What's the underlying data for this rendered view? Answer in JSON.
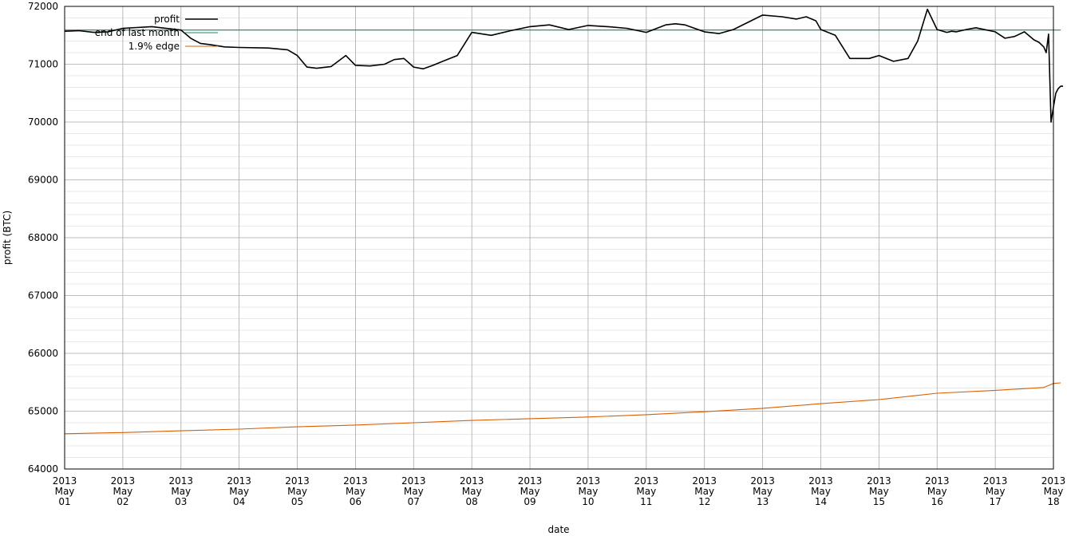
{
  "chart_data": {
    "type": "line",
    "xlabel": "date",
    "ylabel": "profit (BTC)",
    "ylim": [
      64000,
      72000
    ],
    "y_ticks": [
      64000,
      65000,
      66000,
      67000,
      68000,
      69000,
      70000,
      71000,
      72000
    ],
    "xlim": [
      "2013-05-01",
      "2013-05-18"
    ],
    "x_ticks": [
      {
        "line1": "2013",
        "line2": "May",
        "line3": "01"
      },
      {
        "line1": "2013",
        "line2": "May",
        "line3": "02"
      },
      {
        "line1": "2013",
        "line2": "May",
        "line3": "03"
      },
      {
        "line1": "2013",
        "line2": "May",
        "line3": "04"
      },
      {
        "line1": "2013",
        "line2": "May",
        "line3": "05"
      },
      {
        "line1": "2013",
        "line2": "May",
        "line3": "06"
      },
      {
        "line1": "2013",
        "line2": "May",
        "line3": "07"
      },
      {
        "line1": "2013",
        "line2": "May",
        "line3": "08"
      },
      {
        "line1": "2013",
        "line2": "May",
        "line3": "09"
      },
      {
        "line1": "2013",
        "line2": "May",
        "line3": "10"
      },
      {
        "line1": "2013",
        "line2": "May",
        "line3": "11"
      },
      {
        "line1": "2013",
        "line2": "May",
        "line3": "12"
      },
      {
        "line1": "2013",
        "line2": "May",
        "line3": "13"
      },
      {
        "line1": "2013",
        "line2": "May",
        "line3": "14"
      },
      {
        "line1": "2013",
        "line2": "May",
        "line3": "15"
      },
      {
        "line1": "2013",
        "line2": "May",
        "line3": "16"
      },
      {
        "line1": "2013",
        "line2": "May",
        "line3": "17"
      },
      {
        "line1": "2013",
        "line2": "May",
        "line3": "18"
      }
    ],
    "grid": true,
    "legend_position": "top-left",
    "series": [
      {
        "name": "profit",
        "color": "#000000",
        "x": [
          "2013-05-01 00:00",
          "2013-05-01 06:00",
          "2013-05-01 12:00",
          "2013-05-01 18:00",
          "2013-05-02 00:00",
          "2013-05-02 12:00",
          "2013-05-03 00:00",
          "2013-05-03 04:00",
          "2013-05-03 08:00",
          "2013-05-03 12:00",
          "2013-05-03 18:00",
          "2013-05-04 00:00",
          "2013-05-04 12:00",
          "2013-05-04 20:00",
          "2013-05-05 00:00",
          "2013-05-05 04:00",
          "2013-05-05 08:00",
          "2013-05-05 14:00",
          "2013-05-05 20:00",
          "2013-05-06 00:00",
          "2013-05-06 06:00",
          "2013-05-06 12:00",
          "2013-05-06 16:00",
          "2013-05-06 20:00",
          "2013-05-07 00:00",
          "2013-05-07 04:00",
          "2013-05-07 08:00",
          "2013-05-07 12:00",
          "2013-05-07 18:00",
          "2013-05-08 00:00",
          "2013-05-08 08:00",
          "2013-05-08 16:00",
          "2013-05-09 00:00",
          "2013-05-09 08:00",
          "2013-05-09 16:00",
          "2013-05-10 00:00",
          "2013-05-10 08:00",
          "2013-05-10 16:00",
          "2013-05-11 00:00",
          "2013-05-11 08:00",
          "2013-05-11 12:00",
          "2013-05-11 16:00",
          "2013-05-12 00:00",
          "2013-05-12 06:00",
          "2013-05-12 12:00",
          "2013-05-13 00:00",
          "2013-05-13 08:00",
          "2013-05-13 14:00",
          "2013-05-13 18:00",
          "2013-05-13 22:00",
          "2013-05-14 00:00",
          "2013-05-14 06:00",
          "2013-05-14 12:00",
          "2013-05-14 20:00",
          "2013-05-15 00:00",
          "2013-05-15 06:00",
          "2013-05-15 12:00",
          "2013-05-15 16:00",
          "2013-05-15 20:00",
          "2013-05-16 00:00",
          "2013-05-16 04:00",
          "2013-05-16 06:00",
          "2013-05-16 08:00",
          "2013-05-16 12:00",
          "2013-05-16 16:00",
          "2013-05-17 00:00",
          "2013-05-17 04:00",
          "2013-05-17 08:00",
          "2013-05-17 12:00",
          "2013-05-17 16:00",
          "2013-05-17 18:00",
          "2013-05-17 20:00",
          "2013-05-17 21:00",
          "2013-05-17 22:00",
          "2013-05-17 23:00",
          "2013-05-18 00:00",
          "2013-05-18 01:00",
          "2013-05-18 02:00",
          "2013-05-18 03:00",
          "2013-05-18 04:00"
        ],
        "y": [
          71570,
          71580,
          71550,
          71560,
          71620,
          71650,
          71590,
          71450,
          71360,
          71340,
          71300,
          71290,
          71280,
          71250,
          71150,
          70950,
          70930,
          70960,
          71150,
          70980,
          70970,
          71000,
          71080,
          71100,
          70950,
          70920,
          70980,
          71050,
          71150,
          71550,
          71500,
          71580,
          71650,
          71680,
          71600,
          71670,
          71650,
          71620,
          71550,
          71680,
          71700,
          71680,
          71560,
          71530,
          71600,
          71850,
          71820,
          71780,
          71820,
          71750,
          71600,
          71500,
          71100,
          71100,
          71150,
          71050,
          71100,
          71400,
          71950,
          71600,
          71550,
          71570,
          71560,
          71600,
          71630,
          71560,
          71450,
          71480,
          71560,
          71420,
          71380,
          71300,
          71200,
          71520,
          70000,
          70260,
          70500,
          70580,
          70620,
          70620
        ]
      },
      {
        "name": "end of last month",
        "color": "#1f8a5a",
        "x": [
          "2013-05-01 00:00",
          "2013-05-18 03:00"
        ],
        "y": [
          71590,
          71590
        ]
      },
      {
        "name": "1.9% edge",
        "color": "#d95f02",
        "x": [
          "2013-05-01 00:00",
          "2013-05-02 00:00",
          "2013-05-03 00:00",
          "2013-05-04 00:00",
          "2013-05-05 00:00",
          "2013-05-06 00:00",
          "2013-05-07 00:00",
          "2013-05-08 00:00",
          "2013-05-09 00:00",
          "2013-05-10 00:00",
          "2013-05-11 00:00",
          "2013-05-12 00:00",
          "2013-05-13 00:00",
          "2013-05-14 00:00",
          "2013-05-15 00:00",
          "2013-05-16 00:00",
          "2013-05-17 00:00",
          "2013-05-17 20:00",
          "2013-05-18 00:00",
          "2013-05-18 03:00"
        ],
        "y": [
          64610,
          64630,
          64660,
          64690,
          64730,
          64760,
          64800,
          64840,
          64870,
          64900,
          64940,
          64990,
          65050,
          65130,
          65200,
          65310,
          65360,
          65410,
          65480,
          65490
        ]
      }
    ]
  }
}
